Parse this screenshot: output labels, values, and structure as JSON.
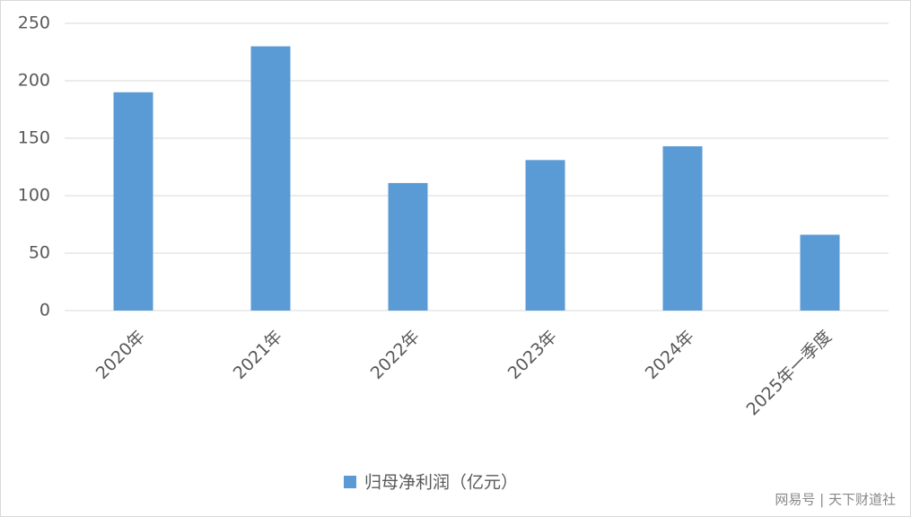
{
  "chart_data": {
    "type": "bar",
    "categories": [
      "2020年",
      "2021年",
      "2022年",
      "2023年",
      "2024年",
      "2025年一季度"
    ],
    "series": [
      {
        "name": "归母净利润（亿元）",
        "color": "#5b9bd5",
        "values": [
          190,
          230,
          111,
          131,
          143,
          66
        ]
      }
    ],
    "ylim": [
      0,
      250
    ],
    "yticks": [
      0,
      50,
      100,
      150,
      200,
      250
    ],
    "grid": true,
    "legend": "bottom"
  },
  "watermark": "网易号 | 天下财道社"
}
